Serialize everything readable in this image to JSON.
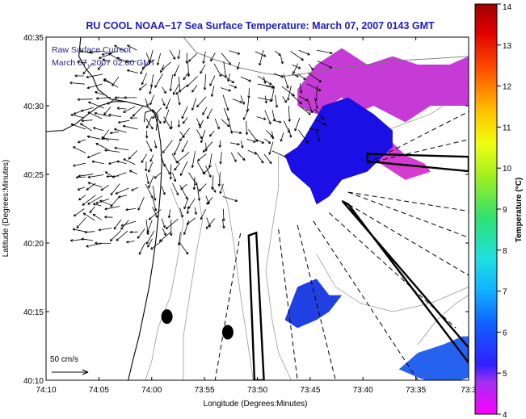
{
  "chart_data": {
    "type": "map",
    "title": "RU COOL  NOAA−17  Sea Surface Temperature:  March 07, 2007 0143 GMT",
    "annotation": [
      "Raw Surface Current",
      "March 07, 2007 02:00 GMT"
    ],
    "xlabel": "Longitude (Degrees:Minutes)",
    "ylabel": "Latitude (Degrees:Minutes)",
    "xlim": [
      -74.1667,
      -73.5
    ],
    "ylim": [
      40.1667,
      40.5833
    ],
    "x_ticks": [
      {
        "v": -74.1667,
        "label": "74:10"
      },
      {
        "v": -74.0833,
        "label": "74:05"
      },
      {
        "v": -74.0,
        "label": "74:00"
      },
      {
        "v": -73.9167,
        "label": "73:55"
      },
      {
        "v": -73.8333,
        "label": "73:50"
      },
      {
        "v": -73.75,
        "label": "73:45"
      },
      {
        "v": -73.6667,
        "label": "73:40"
      },
      {
        "v": -73.5833,
        "label": "73:35"
      },
      {
        "v": -73.5,
        "label": "73:3"
      }
    ],
    "y_ticks": [
      {
        "v": 40.5833,
        "label": "40:35"
      },
      {
        "v": 40.5,
        "label": "40:30"
      },
      {
        "v": 40.4167,
        "label": "40:25"
      },
      {
        "v": 40.3333,
        "label": "40:20"
      },
      {
        "v": 40.25,
        "label": "40:15"
      },
      {
        "v": 40.1667,
        "label": "40:10"
      }
    ],
    "colorbar": {
      "label": "Temperature (°C)",
      "range": [
        4,
        14
      ],
      "ticks": [
        {
          "v": 4,
          "label": "4"
        },
        {
          "v": 5,
          "label": "5"
        },
        {
          "v": 6,
          "label": "6"
        },
        {
          "v": 7,
          "label": "7"
        },
        {
          "v": 8,
          "label": "8"
        },
        {
          "v": 9,
          "label": "9"
        },
        {
          "v": 10,
          "label": "10"
        },
        {
          "v": 11,
          "label": "11"
        },
        {
          "v": 12,
          "label": "12"
        },
        {
          "v": 13,
          "label": "13"
        },
        {
          "v": 14,
          "label": "14"
        }
      ]
    },
    "scale_arrow": {
      "label": "50 cm/s",
      "speed_cms": 50
    },
    "sst_patches": [
      {
        "name": "north-magenta",
        "temp": 4.5,
        "color": "#c63ad6",
        "poly": [
          [
            -73.77,
            40.52
          ],
          [
            -73.74,
            40.55
          ],
          [
            -73.7,
            40.57
          ],
          [
            -73.66,
            40.55
          ],
          [
            -73.62,
            40.56
          ],
          [
            -73.58,
            40.55
          ],
          [
            -73.53,
            40.55
          ],
          [
            -73.5,
            40.56
          ],
          [
            -73.5,
            40.5
          ],
          [
            -73.56,
            40.5
          ],
          [
            -73.6,
            40.48
          ],
          [
            -73.65,
            40.5
          ],
          [
            -73.68,
            40.49
          ],
          [
            -73.7,
            40.51
          ],
          [
            -73.74,
            40.49
          ],
          [
            -73.77,
            40.5
          ]
        ]
      },
      {
        "name": "magenta-tongue",
        "temp": 4.4,
        "color": "#d43cd0",
        "poly": [
          [
            -73.68,
            40.47
          ],
          [
            -73.64,
            40.47
          ],
          [
            -73.6,
            40.44
          ],
          [
            -73.57,
            40.43
          ],
          [
            -73.56,
            40.42
          ],
          [
            -73.6,
            40.41
          ],
          [
            -73.64,
            40.43
          ],
          [
            -73.67,
            40.44
          ]
        ]
      },
      {
        "name": "main-blue",
        "temp": 5.0,
        "color": "#1a10e6",
        "poly": [
          [
            -73.76,
            40.46
          ],
          [
            -73.73,
            40.5
          ],
          [
            -73.69,
            40.51
          ],
          [
            -73.65,
            40.49
          ],
          [
            -73.62,
            40.47
          ],
          [
            -73.62,
            40.45
          ],
          [
            -73.66,
            40.42
          ],
          [
            -73.7,
            40.41
          ],
          [
            -73.72,
            40.39
          ],
          [
            -73.74,
            40.38
          ],
          [
            -73.75,
            40.4
          ],
          [
            -73.78,
            40.42
          ],
          [
            -73.79,
            40.44
          ],
          [
            -73.77,
            40.45
          ]
        ]
      },
      {
        "name": "south-blue",
        "temp": 5.3,
        "color": "#2140e4",
        "poly": [
          [
            -73.79,
            40.24
          ],
          [
            -73.77,
            40.28
          ],
          [
            -73.74,
            40.29
          ],
          [
            -73.72,
            40.27
          ],
          [
            -73.7,
            40.27
          ],
          [
            -73.72,
            40.25
          ],
          [
            -73.74,
            40.24
          ],
          [
            -73.77,
            40.23
          ]
        ]
      },
      {
        "name": "southeast-blue",
        "temp": 5.7,
        "color": "#2563ef",
        "poly": [
          [
            -73.61,
            40.18
          ],
          [
            -73.58,
            40.2
          ],
          [
            -73.54,
            40.21
          ],
          [
            -73.51,
            40.22
          ],
          [
            -73.5,
            40.22
          ],
          [
            -73.5,
            40.17
          ],
          [
            -73.54,
            40.16
          ],
          [
            -73.58,
            40.17
          ]
        ]
      }
    ],
    "sampling_wedges": [
      {
        "name": "wedge-north",
        "poly": [
          [
            -73.66,
            40.4415
          ],
          [
            -73.5,
            40.438
          ],
          [
            -73.5,
            40.4205
          ],
          [
            -73.66,
            40.4325
          ]
        ]
      },
      {
        "name": "wedge-east",
        "poly": [
          [
            -73.69,
            40.3805
          ],
          [
            -73.5,
            40.188
          ],
          [
            -73.5,
            40.2064
          ],
          [
            -73.699,
            40.384
          ]
        ]
      },
      {
        "name": "wedge-south",
        "poly": [
          [
            -73.847,
            40.3425
          ],
          [
            -73.835,
            40.3458
          ],
          [
            -73.823,
            40.1667
          ],
          [
            -73.838,
            40.1667
          ]
        ]
      }
    ],
    "dashed_rays": [
      {
        "from": [
          -73.66,
          40.43
        ],
        "to": [
          -73.5,
          40.493
        ]
      },
      {
        "from": [
          -73.66,
          40.43
        ],
        "to": [
          -73.5,
          40.459
        ]
      },
      {
        "from": [
          -73.69,
          40.395
        ],
        "to": [
          -73.5,
          40.372
        ]
      },
      {
        "from": [
          -73.69,
          40.395
        ],
        "to": [
          -73.5,
          40.34
        ]
      },
      {
        "from": [
          -73.7,
          40.385
        ],
        "to": [
          -73.5,
          40.294
        ]
      },
      {
        "from": [
          -73.72,
          40.37
        ],
        "to": [
          -73.52,
          40.23
        ]
      },
      {
        "from": [
          -73.745,
          40.36
        ],
        "to": [
          -73.58,
          40.1667
        ]
      },
      {
        "from": [
          -73.77,
          40.355
        ],
        "to": [
          -73.71,
          40.1667
        ]
      },
      {
        "from": [
          -73.8,
          40.35
        ],
        "to": [
          -73.77,
          40.1667
        ]
      },
      {
        "from": [
          -73.86,
          40.345
        ],
        "to": [
          -73.9,
          40.1667
        ]
      }
    ],
    "coastline": [
      [
        -74.112,
        40.5833
      ],
      [
        -74.115,
        40.56
      ],
      [
        -74.104,
        40.545
      ],
      [
        -74.093,
        40.535
      ],
      [
        -74.085,
        40.52
      ],
      [
        -74.065,
        40.508
      ],
      [
        -74.04,
        40.505
      ],
      [
        -74.005,
        40.498
      ],
      [
        -73.995,
        40.49
      ],
      [
        -73.99,
        40.475
      ],
      [
        -73.986,
        40.455
      ],
      [
        -73.984,
        40.43
      ],
      [
        -73.986,
        40.4
      ],
      [
        -73.989,
        40.37
      ],
      [
        -73.993,
        40.34
      ],
      [
        -73.998,
        40.31
      ],
      [
        -74.004,
        40.28
      ],
      [
        -74.012,
        40.25
      ],
      [
        -74.02,
        40.22
      ],
      [
        -74.03,
        40.19
      ],
      [
        -74.037,
        40.1667
      ]
    ],
    "sandy_hook": [
      [
        -73.993,
        40.47
      ],
      [
        -73.99,
        40.488
      ],
      [
        -73.998,
        40.495
      ],
      [
        -74.01,
        40.492
      ],
      [
        -74.012,
        40.48
      ]
    ],
    "inner_coast": [
      [
        -74.18,
        40.468
      ],
      [
        -74.14,
        40.47
      ],
      [
        -74.12,
        40.478
      ],
      [
        -74.1,
        40.49
      ],
      [
        -74.082,
        40.5
      ],
      [
        -74.06,
        40.505
      ],
      [
        -74.04,
        40.505
      ]
    ],
    "south_shore": [
      [
        -73.95,
        40.5833
      ],
      [
        -73.93,
        40.565
      ],
      [
        -73.9,
        40.556
      ],
      [
        -73.86,
        40.546
      ],
      [
        -73.82,
        40.539
      ],
      [
        -73.79,
        40.536
      ],
      [
        -73.75,
        40.54
      ],
      [
        -73.71,
        40.545
      ],
      [
        -73.66,
        40.55
      ],
      [
        -73.61,
        40.555
      ],
      [
        -73.56,
        40.557
      ],
      [
        -73.5,
        40.56
      ]
    ],
    "bathymetry": [
      [
        [
          -73.97,
          40.4
        ],
        [
          -73.95,
          40.36
        ],
        [
          -73.96,
          40.31
        ],
        [
          -73.97,
          40.27
        ],
        [
          -73.99,
          40.23
        ],
        [
          -74.0,
          40.19
        ],
        [
          -74.01,
          40.1667
        ]
      ],
      [
        [
          -73.93,
          40.41
        ],
        [
          -73.92,
          40.36
        ],
        [
          -73.93,
          40.32
        ],
        [
          -73.94,
          40.27
        ],
        [
          -73.95,
          40.22
        ],
        [
          -73.95,
          40.1667
        ]
      ],
      [
        [
          -73.9,
          40.43
        ],
        [
          -73.88,
          40.38
        ],
        [
          -73.87,
          40.33
        ],
        [
          -73.86,
          40.27
        ],
        [
          -73.85,
          40.22
        ],
        [
          -73.84,
          40.1667
        ]
      ],
      [
        [
          -73.8,
          40.44
        ],
        [
          -73.8,
          40.4
        ],
        [
          -73.81,
          40.35
        ],
        [
          -73.82,
          40.3
        ],
        [
          -73.81,
          40.24
        ],
        [
          -73.8,
          40.2
        ],
        [
          -73.78,
          40.1667
        ]
      ],
      [
        [
          -73.74,
          40.32
        ],
        [
          -73.71,
          40.28
        ],
        [
          -73.67,
          40.26
        ],
        [
          -73.62,
          40.25
        ],
        [
          -73.56,
          40.26
        ],
        [
          -73.5,
          40.28
        ]
      ],
      [
        [
          -73.76,
          40.5
        ],
        [
          -73.7,
          40.48
        ],
        [
          -73.63,
          40.47
        ],
        [
          -73.56,
          40.49
        ],
        [
          -73.5,
          40.52
        ]
      ],
      [
        [
          -73.58,
          40.21
        ],
        [
          -73.55,
          40.24
        ],
        [
          -73.52,
          40.26
        ],
        [
          -73.5,
          40.27
        ]
      ]
    ],
    "buoys": [
      {
        "name": "buoy-west",
        "lon": -73.976,
        "lat": 40.244
      },
      {
        "name": "buoy-east",
        "lon": -73.88,
        "lat": 40.225
      }
    ]
  }
}
